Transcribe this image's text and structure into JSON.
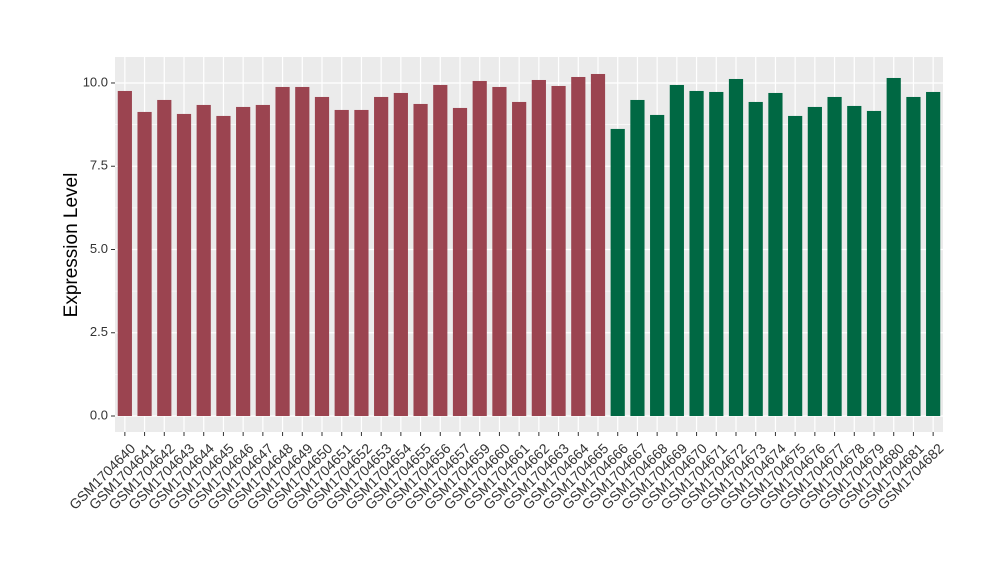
{
  "chart_data": {
    "type": "bar",
    "y_label": "Expression Level",
    "categories": [
      "GSM1704640",
      "GSM1704641",
      "GSM1704642",
      "GSM1704643",
      "GSM1704644",
      "GSM1704645",
      "GSM1704646",
      "GSM1704647",
      "GSM1704648",
      "GSM1704649",
      "GSM1704650",
      "GSM1704651",
      "GSM1704652",
      "GSM1704653",
      "GSM1704654",
      "GSM1704655",
      "GSM1704656",
      "GSM1704657",
      "GSM1704659",
      "GSM1704660",
      "GSM1704661",
      "GSM1704662",
      "GSM1704663",
      "GSM1704664",
      "GSM1704665",
      "GSM1704666",
      "GSM1704667",
      "GSM1704668",
      "GSM1704669",
      "GSM1704670",
      "GSM1704671",
      "GSM1704672",
      "GSM1704673",
      "GSM1704674",
      "GSM1704675",
      "GSM1704676",
      "GSM1704677",
      "GSM1704678",
      "GSM1704679",
      "GSM1704680",
      "GSM1704681",
      "GSM1704682"
    ],
    "values": [
      9.76,
      9.13,
      9.49,
      9.07,
      9.34,
      9.01,
      9.28,
      9.34,
      9.88,
      9.88,
      9.58,
      9.19,
      9.19,
      9.58,
      9.7,
      9.37,
      9.94,
      9.25,
      10.06,
      9.88,
      9.43,
      10.09,
      9.91,
      10.18,
      10.27,
      8.62,
      9.49,
      9.04,
      9.94,
      9.76,
      9.73,
      10.12,
      9.43,
      9.7,
      9.01,
      9.28,
      9.58,
      9.31,
      9.16,
      10.15,
      9.58,
      9.73
    ],
    "colors": [
      "#9b4450",
      "#9b4450",
      "#9b4450",
      "#9b4450",
      "#9b4450",
      "#9b4450",
      "#9b4450",
      "#9b4450",
      "#9b4450",
      "#9b4450",
      "#9b4450",
      "#9b4450",
      "#9b4450",
      "#9b4450",
      "#9b4450",
      "#9b4450",
      "#9b4450",
      "#9b4450",
      "#9b4450",
      "#9b4450",
      "#9b4450",
      "#9b4450",
      "#9b4450",
      "#9b4450",
      "#9b4450",
      "#006843",
      "#006843",
      "#006843",
      "#006843",
      "#006843",
      "#006843",
      "#006843",
      "#006843",
      "#006843",
      "#006843",
      "#006843",
      "#006843",
      "#006843",
      "#006843",
      "#006843",
      "#006843",
      "#006843"
    ],
    "ylim": [
      -0.48,
      10.78
    ],
    "yticks": [
      {
        "value": 0,
        "label": "0.0"
      },
      2.5,
      {
        "value": 5,
        "label": "5.0"
      },
      7.5,
      {
        "value": 10,
        "label": "10.0"
      }
    ],
    "grid": true
  }
}
